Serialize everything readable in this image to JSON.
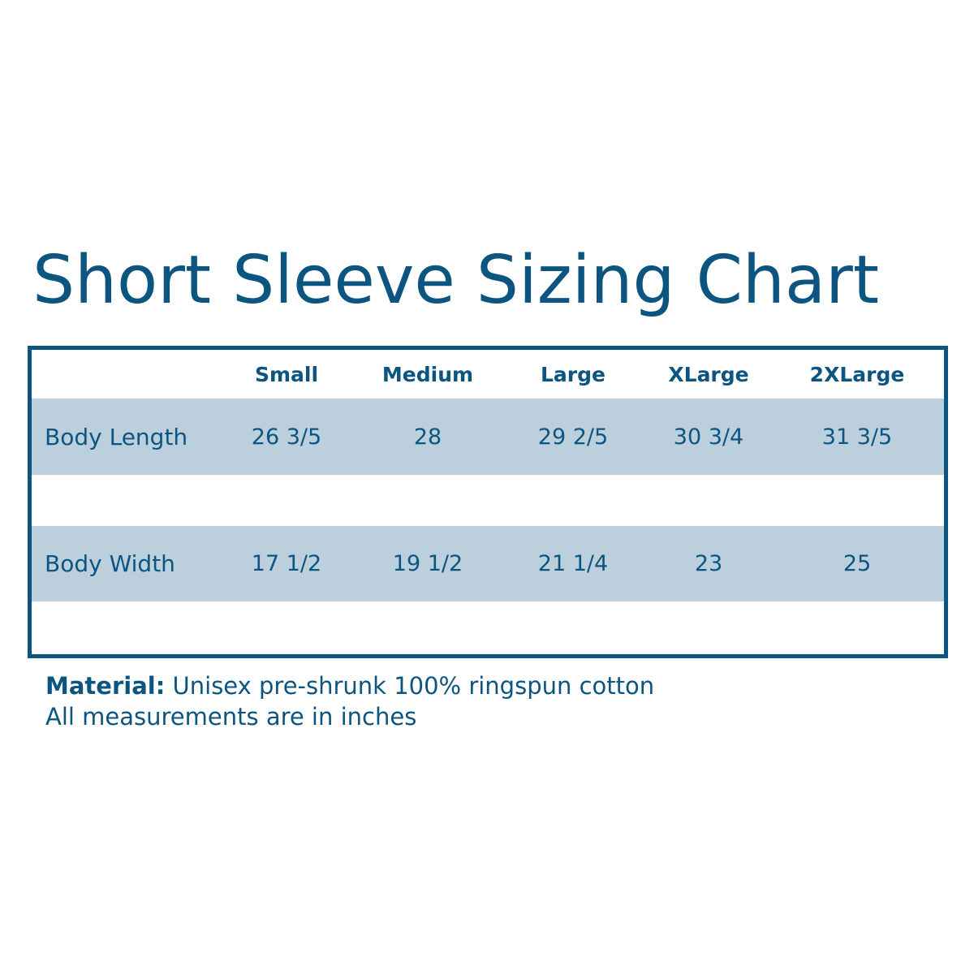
{
  "title": "Short Sleeve Sizing Chart",
  "colors": {
    "primary": "#0b5580",
    "row_shade": "#bbd0dc",
    "background": "#ffffff"
  },
  "chart_data": {
    "type": "table",
    "title": "Short Sleeve Sizing Chart",
    "columns": [
      "Small",
      "Medium",
      "Large",
      "XLarge",
      "2XLarge"
    ],
    "rows": [
      {
        "label": "Body Length",
        "values": [
          "26 3/5",
          "28",
          "29 2/5",
          "30 3/4",
          "31 3/5"
        ]
      },
      {
        "label": "Body Width",
        "values": [
          "17 1/2",
          "19 1/2",
          "21 1/4",
          "23",
          "25"
        ]
      }
    ]
  },
  "notes": {
    "material_label": "Material:",
    "material_text": " Unisex pre-shrunk 100% ringspun cotton",
    "units_text": "All measurements are in inches"
  }
}
